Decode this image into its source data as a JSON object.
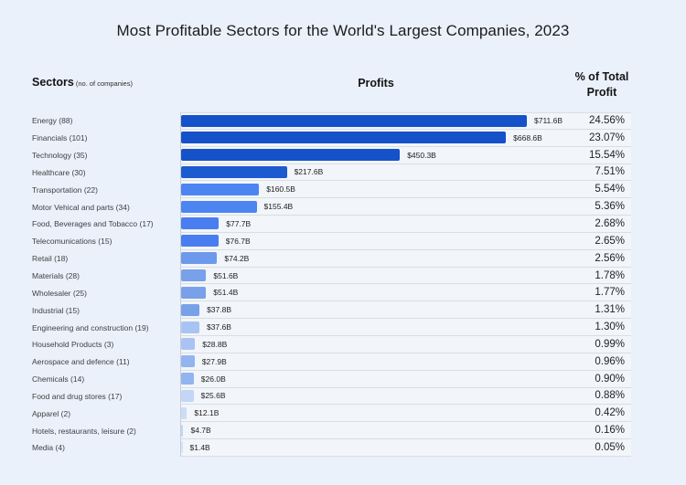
{
  "page": {
    "background_color": "#eaf1fb",
    "title": "Most Profitable Sectors for the World's Largest Companies, 2023"
  },
  "headers": {
    "sectors_label": "Sectors",
    "sectors_note": "(no. of companies)",
    "profits_label": "Profits",
    "percent_label": "% of Total\nProfit"
  },
  "chart_data": {
    "type": "bar",
    "orientation": "horizontal",
    "title": "Most Profitable Sectors for the World's Largest Companies, 2023",
    "xlabel": "Profits",
    "value_unit": "billion USD",
    "value_range": [
      0,
      711.6
    ],
    "grid": "row-separators",
    "legend": "none",
    "categories": [
      "Energy (88)",
      "Financials (101)",
      "Technology (35)",
      "Healthcare (30)",
      "Transportation (22)",
      "Motor Vehical and parts (34)",
      "Food, Beverages and Tobacco (17)",
      "Telecomunications (15)",
      "Retail (18)",
      "Materials (28)",
      "Wholesaler (25)",
      "Industrial (15)",
      "Engineering and construction (19)",
      "Household Products (3)",
      "Aerospace and defence (11)",
      "Chemicals (14)",
      "Food and drug stores (17)",
      "Apparel (2)",
      "Hotels, restaurants, leisure (2)",
      "Media (4)"
    ],
    "rows": [
      {
        "label": "Energy (88)",
        "sector": "Energy",
        "companies": 88,
        "profit_billion": 711.6,
        "profit_label": "$711.6B",
        "percent": 24.56,
        "percent_label": "24.56%",
        "bar_color": "#1551c8"
      },
      {
        "label": "Financials (101)",
        "sector": "Financials",
        "companies": 101,
        "profit_billion": 668.6,
        "profit_label": "$668.6B",
        "percent": 23.07,
        "percent_label": "23.07%",
        "bar_color": "#1551c8"
      },
      {
        "label": "Technology (35)",
        "sector": "Technology",
        "companies": 35,
        "profit_billion": 450.3,
        "profit_label": "$450.3B",
        "percent": 15.54,
        "percent_label": "15.54%",
        "bar_color": "#1551c8"
      },
      {
        "label": "Healthcare (30)",
        "sector": "Healthcare",
        "companies": 30,
        "profit_billion": 217.6,
        "profit_label": "$217.6B",
        "percent": 7.51,
        "percent_label": "7.51%",
        "bar_color": "#1c5ad0"
      },
      {
        "label": "Transportation (22)",
        "sector": "Transportation",
        "companies": 22,
        "profit_billion": 160.5,
        "profit_label": "$160.5B",
        "percent": 5.54,
        "percent_label": "5.54%",
        "bar_color": "#4c85f2"
      },
      {
        "label": "Motor Vehical and parts (34)",
        "sector": "Motor Vehical and parts",
        "companies": 34,
        "profit_billion": 155.4,
        "profit_label": "$155.4B",
        "percent": 5.36,
        "percent_label": "5.36%",
        "bar_color": "#4c85f2"
      },
      {
        "label": "Food, Beverages and Tobacco (17)",
        "sector": "Food, Beverages and Tobacco",
        "companies": 17,
        "profit_billion": 77.7,
        "profit_label": "$77.7B",
        "percent": 2.68,
        "percent_label": "2.68%",
        "bar_color": "#4a7df0"
      },
      {
        "label": "Telecomunications (15)",
        "sector": "Telecomunications",
        "companies": 15,
        "profit_billion": 76.7,
        "profit_label": "$76.7B",
        "percent": 2.65,
        "percent_label": "2.65%",
        "bar_color": "#4a7df0"
      },
      {
        "label": "Retail (18)",
        "sector": "Retail",
        "companies": 18,
        "profit_billion": 74.2,
        "profit_label": "$74.2B",
        "percent": 2.56,
        "percent_label": "2.56%",
        "bar_color": "#6d99ec"
      },
      {
        "label": "Materials (28)",
        "sector": "Materials",
        "companies": 28,
        "profit_billion": 51.6,
        "profit_label": "$51.6B",
        "percent": 1.78,
        "percent_label": "1.78%",
        "bar_color": "#79a1ea"
      },
      {
        "label": "Wholesaler (25)",
        "sector": "Wholesaler",
        "companies": 25,
        "profit_billion": 51.4,
        "profit_label": "$51.4B",
        "percent": 1.77,
        "percent_label": "1.77%",
        "bar_color": "#79a1ea"
      },
      {
        "label": "Industrial (15)",
        "sector": "Industrial",
        "companies": 15,
        "profit_billion": 37.8,
        "profit_label": "$37.8B",
        "percent": 1.31,
        "percent_label": "1.31%",
        "bar_color": "#79a1ea"
      },
      {
        "label": "Engineering and construction (19)",
        "sector": "Engineering and construction",
        "companies": 19,
        "profit_billion": 37.6,
        "profit_label": "$37.6B",
        "percent": 1.3,
        "percent_label": "1.30%",
        "bar_color": "#a9c4f4"
      },
      {
        "label": "Household Products (3)",
        "sector": "Household Products",
        "companies": 3,
        "profit_billion": 28.8,
        "profit_label": "$28.8B",
        "percent": 0.99,
        "percent_label": "0.99%",
        "bar_color": "#aac3f3"
      },
      {
        "label": "Aerospace and defence (11)",
        "sector": "Aerospace and defence",
        "companies": 11,
        "profit_billion": 27.9,
        "profit_label": "$27.9B",
        "percent": 0.96,
        "percent_label": "0.96%",
        "bar_color": "#92b4f0"
      },
      {
        "label": "Chemicals (14)",
        "sector": "Chemicals",
        "companies": 14,
        "profit_billion": 26.0,
        "profit_label": "$26.0B",
        "percent": 0.9,
        "percent_label": "0.90%",
        "bar_color": "#92b4f0"
      },
      {
        "label": "Food and drug stores (17)",
        "sector": "Food and drug stores",
        "companies": 17,
        "profit_billion": 25.6,
        "profit_label": "$25.6B",
        "percent": 0.88,
        "percent_label": "0.88%",
        "bar_color": "#c3d6f7"
      },
      {
        "label": "Apparel (2)",
        "sector": "Apparel",
        "companies": 2,
        "profit_billion": 12.1,
        "profit_label": "$12.1B",
        "percent": 0.42,
        "percent_label": "0.42%",
        "bar_color": "#cbdcf8"
      },
      {
        "label": "Hotels, restaurants, leisure (2)",
        "sector": "Hotels, restaurants, leisure",
        "companies": 2,
        "profit_billion": 4.7,
        "profit_label": "$4.7B",
        "percent": 0.16,
        "percent_label": "0.16%",
        "bar_color": "#c3d6f7"
      },
      {
        "label": "Media (4)",
        "sector": "Media",
        "companies": 4,
        "profit_billion": 1.4,
        "profit_label": "$1.4B",
        "percent": 0.05,
        "percent_label": "0.05%",
        "bar_color": "#d8e3fa"
      }
    ]
  }
}
